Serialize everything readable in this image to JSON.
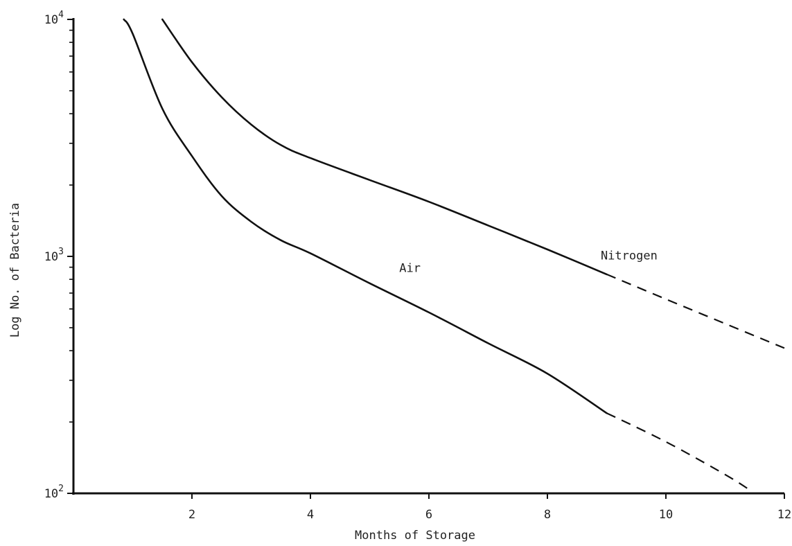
{
  "chart_data": {
    "type": "line",
    "title": "",
    "xlabel": "Months of Storage",
    "ylabel": "Log No. of Bacteria",
    "xlim": [
      0,
      12
    ],
    "ylim": [
      100,
      10000
    ],
    "yscale": "log",
    "grid": false,
    "legend": "none",
    "x_ticks": [
      {
        "value": 2,
        "label": "2"
      },
      {
        "value": 4,
        "label": "4"
      },
      {
        "value": 6,
        "label": "6"
      },
      {
        "value": 8,
        "label": "8"
      },
      {
        "value": 10,
        "label": "10"
      },
      {
        "value": 12,
        "label": "12"
      }
    ],
    "y_ticks": [
      {
        "value": 100,
        "base": "10",
        "exp": "2"
      },
      {
        "value": 1000,
        "base": "10",
        "exp": "3"
      },
      {
        "value": 10000,
        "base": "10",
        "exp": "4"
      }
    ],
    "y_minor_ticks": [
      200,
      300,
      400,
      500,
      600,
      700,
      800,
      900,
      2000,
      3000,
      4000,
      5000,
      6000,
      7000,
      8000,
      9000
    ],
    "series": [
      {
        "name": "Nitrogen",
        "label_x": 8.9,
        "label_y": 970,
        "solid": [
          [
            1.5,
            10000
          ],
          [
            2,
            6600
          ],
          [
            2.5,
            4700
          ],
          [
            3,
            3600
          ],
          [
            3.5,
            2950
          ],
          [
            4,
            2600
          ],
          [
            5,
            2100
          ],
          [
            6,
            1700
          ],
          [
            7,
            1350
          ],
          [
            8,
            1070
          ],
          [
            9,
            840
          ]
        ],
        "dashed": [
          [
            9,
            840
          ],
          [
            10,
            660
          ],
          [
            11,
            520
          ],
          [
            12,
            410
          ]
        ]
      },
      {
        "name": "Air",
        "label_x": 5.5,
        "label_y": 860,
        "solid": [
          [
            0.85,
            10000
          ],
          [
            1,
            8700
          ],
          [
            1.5,
            4200
          ],
          [
            2,
            2650
          ],
          [
            2.5,
            1800
          ],
          [
            3,
            1400
          ],
          [
            3.5,
            1170
          ],
          [
            4,
            1030
          ],
          [
            5,
            770
          ],
          [
            6,
            580
          ],
          [
            7,
            430
          ],
          [
            8,
            320
          ],
          [
            9,
            218
          ]
        ],
        "dashed": [
          [
            9,
            218
          ],
          [
            10,
            165
          ],
          [
            11,
            120
          ],
          [
            11.45,
            102
          ]
        ]
      }
    ]
  }
}
